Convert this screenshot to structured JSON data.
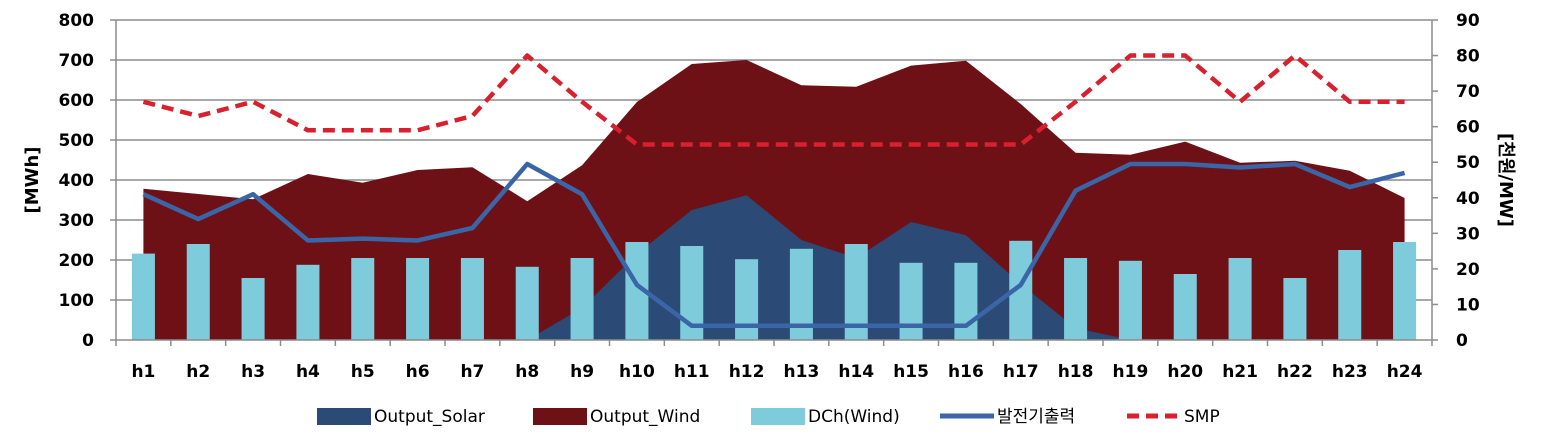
{
  "chart_data": {
    "type": "combo",
    "categories": [
      "h1",
      "h2",
      "h3",
      "h4",
      "h5",
      "h6",
      "h7",
      "h8",
      "h9",
      "h10",
      "h11",
      "h12",
      "h13",
      "h14",
      "h15",
      "h16",
      "h17",
      "h18",
      "h19",
      "h20",
      "h21",
      "h22",
      "h23",
      "h24"
    ],
    "y_left": {
      "label": "[MWh]",
      "ylim": [
        0,
        800
      ],
      "ticks": [
        0,
        100,
        200,
        300,
        400,
        500,
        600,
        700,
        800
      ]
    },
    "y_right": {
      "label": "[천원/MW]",
      "ylim": [
        0,
        90
      ],
      "ticks": [
        0,
        10,
        20,
        30,
        40,
        50,
        60,
        70,
        80,
        90
      ]
    },
    "grid": true,
    "legend_position": "bottom",
    "series": [
      {
        "name": "Output_Solar",
        "type": "area",
        "axis": "left",
        "color": "#2b4a75",
        "values": [
          0,
          0,
          0,
          0,
          0,
          0,
          0,
          0,
          80,
          215,
          325,
          362,
          250,
          205,
          295,
          262,
          140,
          30,
          0,
          0,
          0,
          0,
          0,
          0
        ]
      },
      {
        "name": "Output_Wind",
        "type": "area",
        "axis": "left",
        "color": "#6d1117",
        "values": [
          378,
          365,
          352,
          415,
          393,
          425,
          432,
          347,
          437,
          595,
          690,
          700,
          637,
          633,
          686,
          698,
          590,
          468,
          463,
          496,
          443,
          448,
          423,
          355
        ]
      },
      {
        "name": "DCh(Wind)",
        "type": "bar",
        "axis": "left",
        "color": "#7ecbdc",
        "values": [
          216,
          240,
          155,
          188,
          205,
          205,
          205,
          183,
          205,
          245,
          235,
          202,
          228,
          240,
          193,
          193,
          248,
          205,
          198,
          165,
          205,
          155,
          225,
          245
        ]
      },
      {
        "name": "발전기출력",
        "type": "line",
        "axis": "right",
        "color": "#3a66a8",
        "values": [
          41,
          34,
          41,
          28,
          28.5,
          28,
          31.5,
          49.5,
          41,
          15.5,
          4,
          4,
          4,
          4,
          4,
          4,
          15.5,
          42,
          49.5,
          49.5,
          48.5,
          49.5,
          43,
          47
        ]
      },
      {
        "name": "SMP",
        "type": "line",
        "axis": "right",
        "color": "#d9202e",
        "dashed": true,
        "values": [
          67,
          63,
          67,
          59,
          59,
          59,
          63,
          80,
          67,
          55,
          55,
          55,
          55,
          55,
          55,
          55,
          55,
          67,
          80,
          80,
          67,
          80,
          67,
          67
        ]
      }
    ]
  }
}
